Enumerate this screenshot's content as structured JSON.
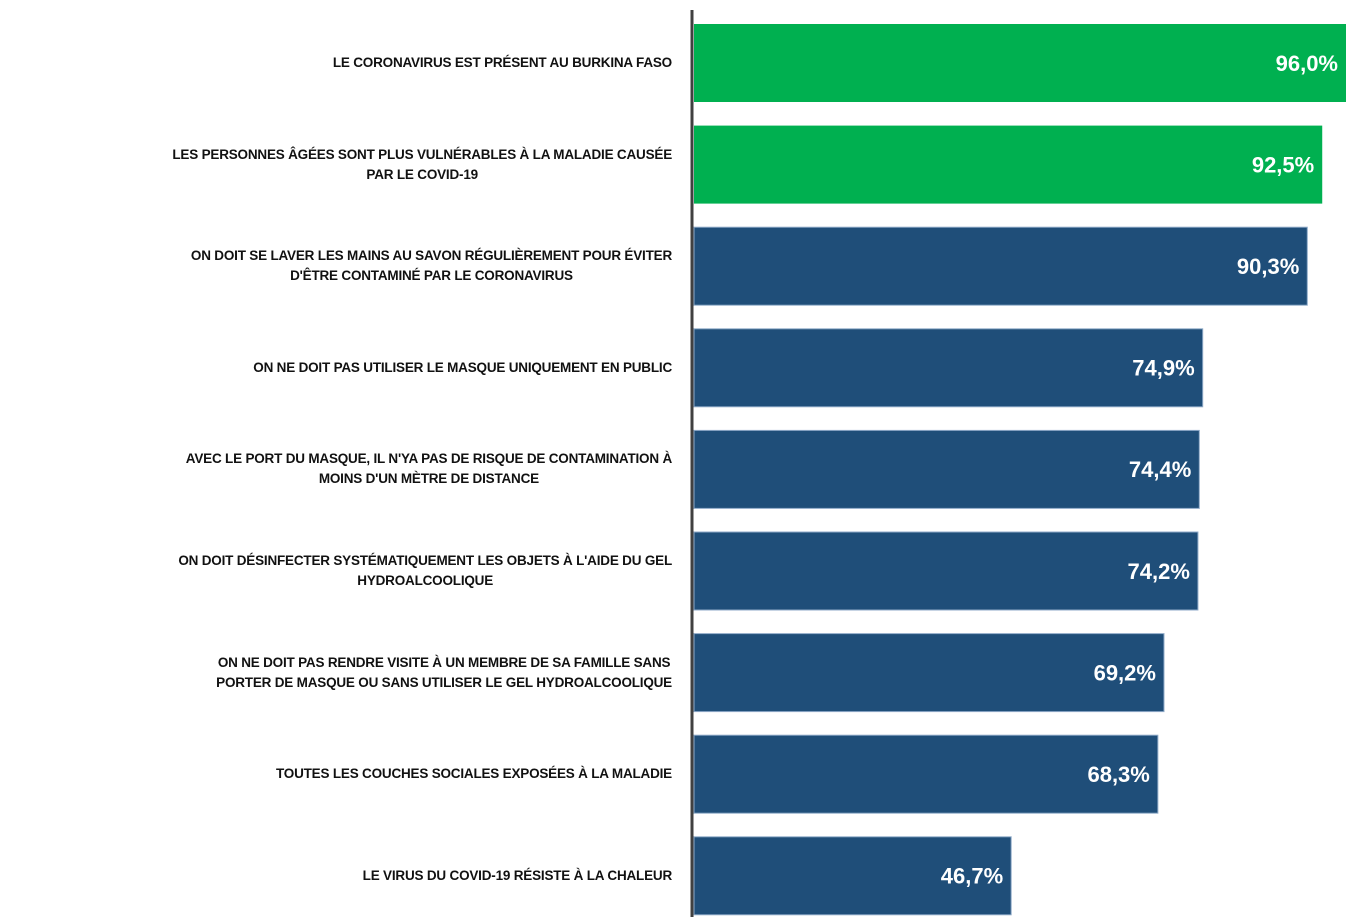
{
  "chart_data": {
    "type": "barh",
    "categories": [
      "LE CORONAVIRUS EST PRÉSENT AU BURKINA FASO",
      "LES PERSONNES ÂGÉES SONT PLUS VULNÉRABLES À LA MALADIE CAUSÉE\nPAR LE  COVID-19",
      "ON DOIT SE LAVER LES MAINS AU SAVON RÉGULIÈREMENT POUR ÉVITER\nD'ÊTRE CONTAMINÉ PAR LE CORONAVIRUS",
      "ON NE DOIT PAS UTILISER LE MASQUE UNIQUEMENT EN PUBLIC",
      "AVEC LE PORT DU MASQUE, IL N'YA PAS DE RISQUE DE CONTAMINATION À\nMOINS D'UN MÈTRE DE DISTANCE",
      "ON DOIT DÉSINFECTER SYSTÉMATIQUEMENT LES OBJETS À L'AIDE DU GEL\nHYDROALCOOLIQUE",
      "ON NE DOIT PAS RENDRE VISITE À UN MEMBRE DE SA FAMILLE SANS\nPORTER DE MASQUE OU SANS UTILISER LE GEL HYDROALCOOLIQUE",
      "TOUTES LES COUCHES SOCIALES  EXPOSÉES À LA MALADIE",
      "LE VIRUS DU COVID-19 RÉSISTE À LA CHALEUR"
    ],
    "values": [
      96.0,
      92.5,
      90.3,
      74.9,
      74.4,
      74.2,
      69.2,
      68.3,
      46.7
    ],
    "value_labels": [
      "96,0%",
      "92,5%",
      "90,3%",
      "74,9%",
      "74,4%",
      "74,2%",
      "69,2%",
      "68,3%",
      "46,7%"
    ],
    "colors": [
      "#00b050",
      "#00b050",
      "#1f4e79",
      "#1f4e79",
      "#1f4e79",
      "#1f4e79",
      "#1f4e79",
      "#1f4e79",
      "#1f4e79"
    ],
    "xlim": [
      0,
      96
    ]
  }
}
